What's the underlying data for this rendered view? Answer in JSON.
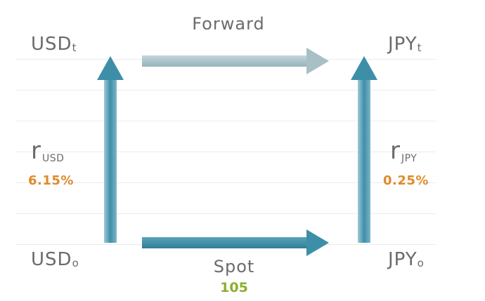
{
  "forward_label": "Forward",
  "spot_label": "Spot",
  "spot_rate": "105",
  "usd_t": {
    "main": "USD",
    "sub": "t"
  },
  "jpy_t": {
    "main": "JPY",
    "sub": "t"
  },
  "usd_0": {
    "main": "USD",
    "sub": "o"
  },
  "jpy_0": {
    "main": "JPY",
    "sub": "o"
  },
  "r_usd": {
    "symbol": "r",
    "sub": "USD",
    "value": "6.15%"
  },
  "r_jpy": {
    "symbol": "r",
    "sub": "JPY",
    "value": "0.25%"
  },
  "colors": {
    "arrow_dark": "#3d8fa8",
    "arrow_light": "#9fc9d6",
    "forward_arrow": "#a9bfc6",
    "rate_value": "#e08a2c",
    "spot_value": "#8dae2f",
    "text": "#6b6b6b",
    "gridline": "#e8ecee"
  },
  "icons": [
    "arrow-up-icon",
    "arrow-right-icon"
  ]
}
